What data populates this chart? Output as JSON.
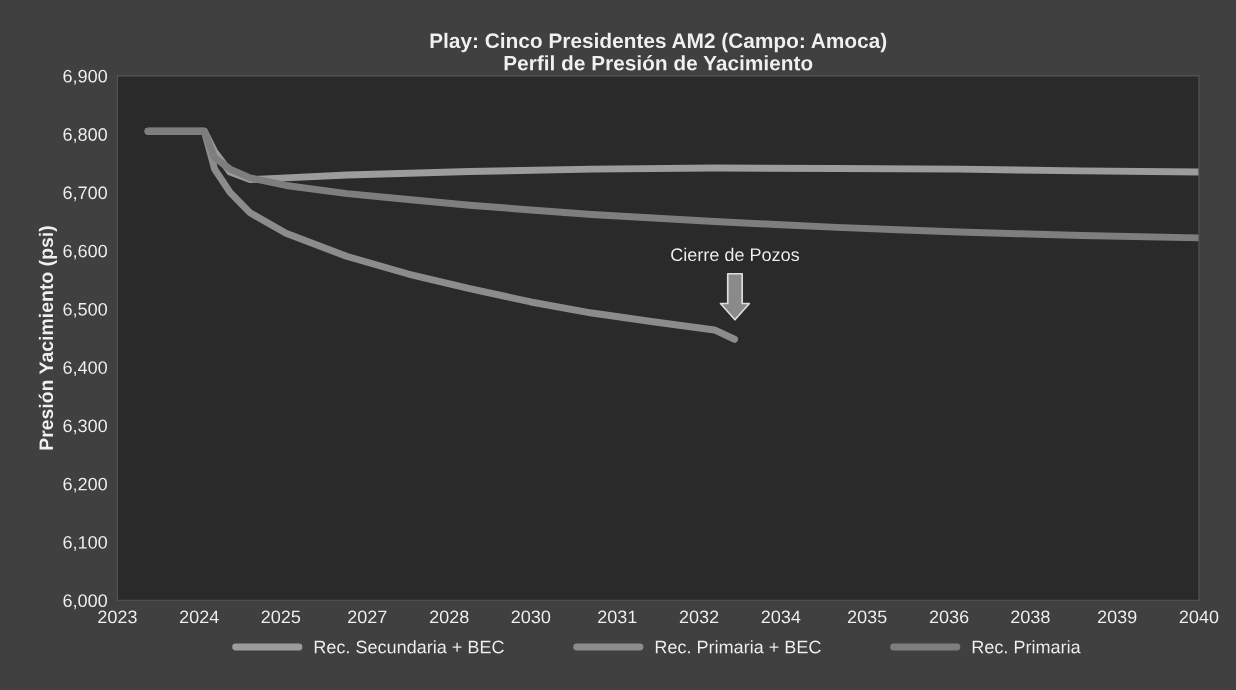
{
  "chart_data": {
    "type": "line",
    "title": "Play: Cinco Presidentes AM2 (Campo: Amoca)\nPerfil de Presión de Yacimiento",
    "ylabel": "Presión Yacimiento (psi)",
    "series": [
      {
        "name": "Rec. Secundaria + BEC",
        "color": "#9c9c9c",
        "x": [
          "2023-10",
          "2024-09",
          "2024-11",
          "2025-02",
          "2025-06",
          "2026-01",
          "2027-01",
          "2029-01",
          "2031-01",
          "2033-01",
          "2035-01",
          "2037-01",
          "2039-01",
          "2040-12"
        ],
        "values": [
          6805,
          6805,
          6770,
          6735,
          6722,
          6725,
          6730,
          6736,
          6740,
          6742,
          6741,
          6740,
          6737,
          6735
        ]
      },
      {
        "name": "Rec. Primaria + BEC",
        "color": "#8c8c8c",
        "x": [
          "2023-10",
          "2024-09",
          "2024-11",
          "2025-02",
          "2025-06",
          "2026-01",
          "2027-01",
          "2028-01",
          "2029-01",
          "2030-01",
          "2031-01",
          "2032-01",
          "2033-01",
          "2033-05"
        ],
        "values": [
          6805,
          6805,
          6740,
          6700,
          6665,
          6630,
          6590,
          6560,
          6535,
          6512,
          6493,
          6478,
          6464,
          6448
        ]
      },
      {
        "name": "Rec. Primaria",
        "color": "#7e7e7e",
        "x": [
          "2023-10",
          "2024-09",
          "2024-11",
          "2025-02",
          "2025-06",
          "2026-01",
          "2027-01",
          "2028-01",
          "2029-01",
          "2030-01",
          "2031-01",
          "2032-01",
          "2033-01",
          "2034-01",
          "2035-01",
          "2036-01",
          "2037-01",
          "2038-01",
          "2039-01",
          "2040-12"
        ],
        "values": [
          6805,
          6805,
          6760,
          6740,
          6725,
          6712,
          6698,
          6688,
          6678,
          6670,
          6662,
          6656,
          6650,
          6645,
          6640,
          6636,
          6632,
          6629,
          6626,
          6622
        ]
      }
    ],
    "annotations": [
      "Cierre de Pozos"
    ],
    "xlim": [
      "2023-04",
      "2040-12"
    ],
    "xticks": [
      {
        "value": "2023-04",
        "label": "2023"
      },
      {
        "value": "2024-08",
        "label": "2024"
      },
      {
        "value": "2025-12",
        "label": "2025"
      },
      {
        "value": "2027-05",
        "label": "2027"
      },
      {
        "value": "2028-09",
        "label": "2028"
      },
      {
        "value": "2030-01",
        "label": "2030"
      },
      {
        "value": "2031-06",
        "label": "2031"
      },
      {
        "value": "2032-10",
        "label": "2032"
      },
      {
        "value": "2034-02",
        "label": "2034"
      },
      {
        "value": "2035-07",
        "label": "2035"
      },
      {
        "value": "2036-11",
        "label": "2036"
      },
      {
        "value": "2038-03",
        "label": "2038"
      },
      {
        "value": "2039-08",
        "label": "2039"
      },
      {
        "value": "2040-12",
        "label": "2040"
      }
    ],
    "ylim": [
      6000,
      6900
    ],
    "yticks": [
      {
        "value": 6000,
        "label": "6,000"
      },
      {
        "value": 6100,
        "label": "6,100"
      },
      {
        "value": 6200,
        "label": "6,200"
      },
      {
        "value": 6300,
        "label": "6,300"
      },
      {
        "value": 6400,
        "label": "6,400"
      },
      {
        "value": 6500,
        "label": "6,500"
      },
      {
        "value": 6600,
        "label": "6,600"
      },
      {
        "value": 6700,
        "label": "6,700"
      },
      {
        "value": 6800,
        "label": "6,800"
      },
      {
        "value": 6900,
        "label": "6,900"
      }
    ],
    "grid": false,
    "legend": "bottom",
    "marker": "none",
    "line_style": "solid"
  }
}
